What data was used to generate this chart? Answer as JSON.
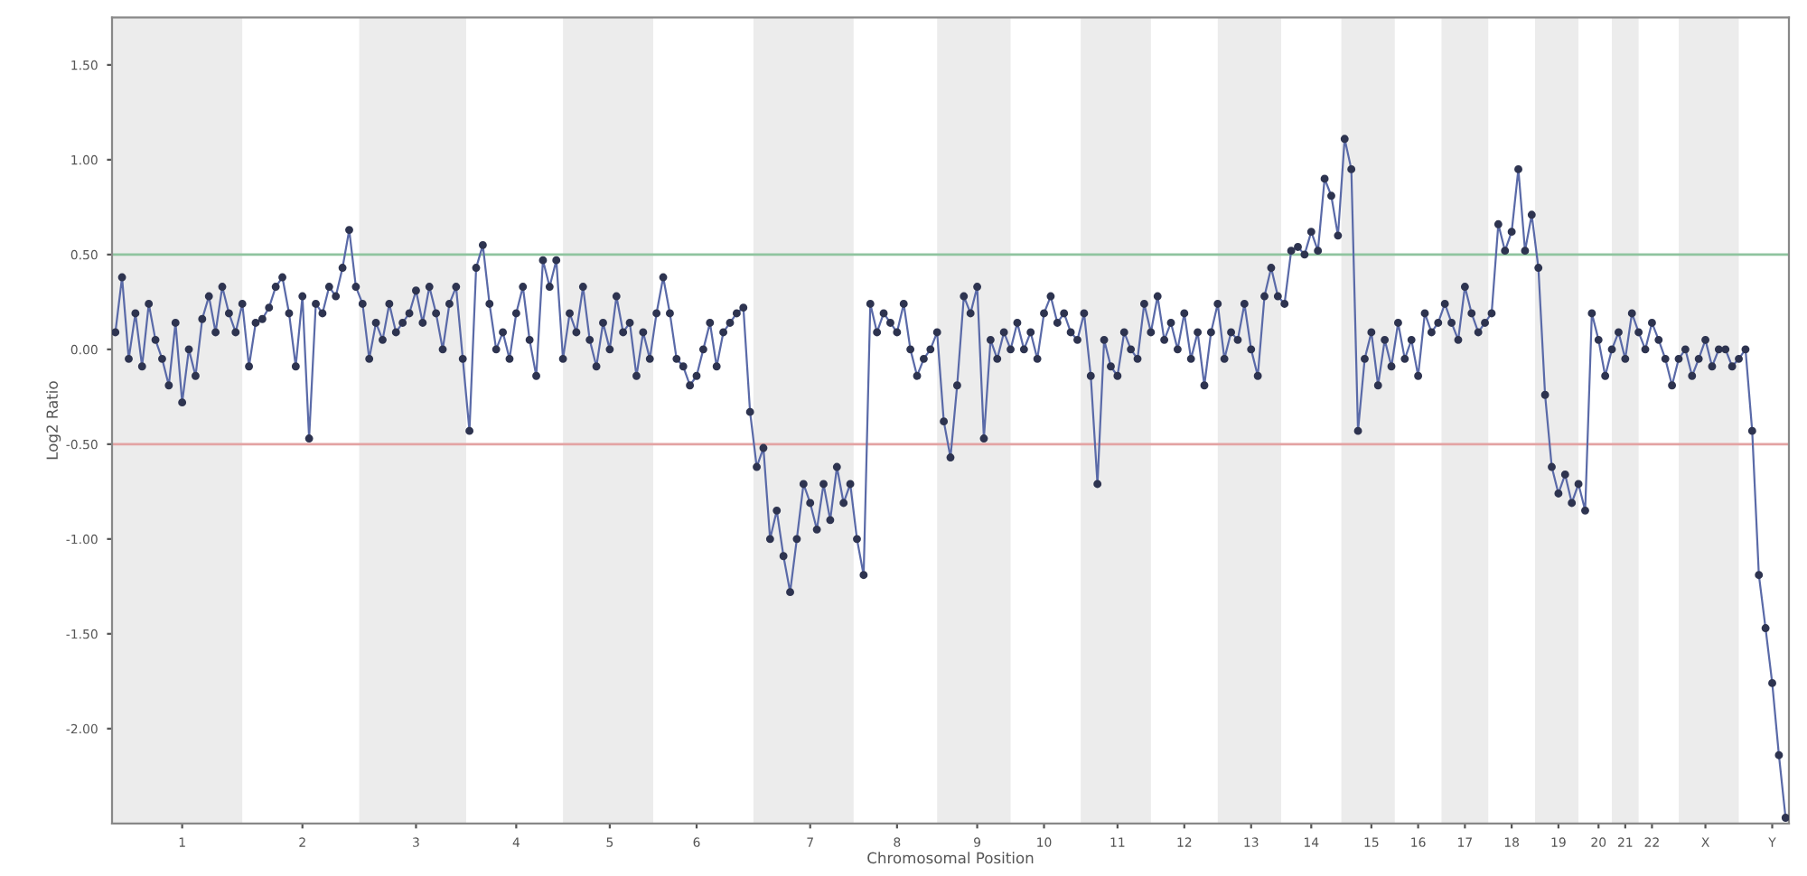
{
  "chart_data": {
    "type": "line",
    "xlabel": "Chromosomal Position",
    "ylabel": "Log2 Ratio",
    "ylim": [
      -2.5,
      1.75
    ],
    "categories": [
      null,
      null,
      null,
      null,
      null,
      null,
      null,
      null,
      null,
      null,
      "1",
      null,
      null,
      null,
      null,
      null,
      null,
      null,
      null,
      null,
      null,
      null,
      null,
      null,
      null,
      null,
      null,
      null,
      "2",
      null,
      null,
      null,
      null,
      null,
      null,
      null,
      null,
      null,
      null,
      null,
      null,
      null,
      null,
      null,
      null,
      "3",
      null,
      null,
      null,
      null,
      null,
      null,
      null,
      null,
      null,
      null,
      null,
      null,
      null,
      null,
      "4",
      null,
      null,
      null,
      null,
      null,
      null,
      null,
      null,
      null,
      null,
      null,
      null,
      null,
      "5",
      null,
      null,
      null,
      null,
      null,
      null,
      null,
      null,
      null,
      null,
      null,
      null,
      "6",
      null,
      null,
      null,
      null,
      null,
      null,
      null,
      null,
      null,
      null,
      null,
      null,
      null,
      null,
      null,
      null,
      "7",
      null,
      null,
      null,
      null,
      null,
      null,
      null,
      null,
      null,
      null,
      null,
      null,
      "8",
      null,
      null,
      null,
      null,
      null,
      null,
      null,
      null,
      null,
      null,
      null,
      "9",
      null,
      null,
      null,
      null,
      null,
      null,
      null,
      null,
      null,
      "10",
      null,
      null,
      null,
      null,
      null,
      null,
      null,
      null,
      null,
      null,
      "11",
      null,
      null,
      null,
      null,
      null,
      null,
      null,
      null,
      null,
      "12",
      null,
      null,
      null,
      null,
      null,
      null,
      null,
      null,
      null,
      "13",
      null,
      null,
      null,
      null,
      null,
      null,
      null,
      null,
      "14",
      null,
      null,
      null,
      null,
      null,
      null,
      null,
      null,
      "15",
      null,
      null,
      null,
      null,
      null,
      null,
      "16",
      null,
      null,
      null,
      null,
      null,
      null,
      "17",
      null,
      null,
      null,
      null,
      null,
      null,
      "18",
      null,
      null,
      null,
      null,
      null,
      null,
      "19",
      null,
      null,
      null,
      null,
      null,
      "20",
      null,
      null,
      null,
      "21",
      null,
      null,
      null,
      "22",
      null,
      null,
      null,
      null,
      null,
      null,
      null,
      "X",
      null,
      null,
      null,
      null,
      null,
      null,
      null,
      null,
      null,
      "Y",
      null,
      null
    ],
    "yticks": [
      {
        "value": 1.5,
        "label": "1.50"
      },
      {
        "value": 1,
        "label": "1.00"
      },
      {
        "value": 0.5,
        "label": "0.50"
      },
      {
        "value": 0,
        "label": "0.00"
      },
      {
        "value": -0.5,
        "label": "-0.50"
      },
      {
        "value": -1,
        "label": "-1.00"
      },
      {
        "value": -1.5,
        "label": "-1.50"
      },
      {
        "value": -2,
        "label": "-2.00"
      }
    ],
    "grid": false,
    "marker": "circle",
    "line_style": "solid",
    "ref_lines": [
      {
        "axis": "y",
        "value": 0.5,
        "color": "#8fc49f"
      },
      {
        "axis": "y",
        "value": -0.5,
        "color": "#e3a3a3"
      }
    ],
    "series": [
      {
        "color": "#5a6aa8",
        "values": [
          0.09,
          0.38,
          -0.05,
          0.19,
          -0.09,
          0.24,
          0.05,
          -0.05,
          -0.19,
          0.14,
          -0.28,
          0,
          -0.14,
          0.16,
          0.28,
          0.09,
          0.33,
          0.19,
          0.09,
          0.24,
          -0.09,
          0.14,
          0.16,
          0.22,
          0.33,
          0.38,
          0.19,
          -0.09,
          0.28,
          -0.47,
          0.24,
          0.19,
          0.33,
          0.28,
          0.43,
          0.63,
          0.33,
          0.24,
          -0.05,
          0.14,
          0.05,
          0.24,
          0.09,
          0.14,
          0.19,
          0.31,
          0.14,
          0.33,
          0.19,
          0,
          0.24,
          0.33,
          -0.05,
          -0.43,
          0.43,
          0.55,
          0.24,
          0,
          0.09,
          -0.05,
          0.19,
          0.33,
          0.05,
          -0.14,
          0.47,
          0.33,
          0.47,
          -0.05,
          0.19,
          0.09,
          0.33,
          0.05,
          -0.09,
          0.14,
          0,
          0.28,
          0.09,
          0.14,
          -0.14,
          0.09,
          -0.05,
          0.19,
          0.38,
          0.19,
          -0.05,
          -0.09,
          -0.19,
          -0.14,
          0,
          0.14,
          -0.09,
          0.09,
          0.14,
          0.19,
          0.22,
          -0.33,
          -0.62,
          -0.52,
          -1.0,
          -0.85,
          -1.09,
          -1.28,
          -1.0,
          -0.71,
          -0.81,
          -0.95,
          -0.71,
          -0.9,
          -0.62,
          -0.81,
          -0.71,
          -1.0,
          -1.19,
          0.24,
          0.09,
          0.19,
          0.14,
          0.09,
          0.24,
          0,
          -0.14,
          -0.05,
          0,
          0.09,
          -0.38,
          -0.57,
          -0.19,
          0.28,
          0.19,
          0.33,
          -0.47,
          0.05,
          -0.05,
          0.09,
          0,
          0.14,
          0,
          0.09,
          -0.05,
          0.19,
          0.28,
          0.14,
          0.19,
          0.09,
          0.05,
          0.19,
          -0.14,
          -0.71,
          0.05,
          -0.09,
          -0.14,
          0.09,
          0,
          -0.05,
          0.24,
          0.09,
          0.28,
          0.05,
          0.14,
          0,
          0.19,
          -0.05,
          0.09,
          -0.19,
          0.09,
          0.24,
          -0.05,
          0.09,
          0.05,
          0.24,
          0,
          -0.14,
          0.28,
          0.43,
          0.28,
          0.24,
          0.52,
          0.54,
          0.5,
          0.62,
          0.52,
          0.9,
          0.81,
          0.6,
          1.11,
          0.95,
          -0.43,
          -0.05,
          0.09,
          -0.19,
          0.05,
          -0.09,
          0.14,
          -0.05,
          0.05,
          -0.14,
          0.19,
          0.09,
          0.14,
          0.24,
          0.14,
          0.05,
          0.33,
          0.19,
          0.09,
          0.14,
          0.19,
          0.66,
          0.52,
          0.62,
          0.95,
          0.52,
          0.71,
          0.43,
          -0.24,
          -0.62,
          -0.76,
          -0.66,
          -0.81,
          -0.71,
          -0.85,
          0.19,
          0.05,
          -0.14,
          0,
          0.09,
          -0.05,
          0.19,
          0.09,
          0,
          0.14,
          0.05,
          -0.05,
          -0.19,
          -0.05,
          0,
          -0.14,
          -0.05,
          0.05,
          -0.09,
          0,
          0,
          -0.09,
          -0.05,
          0,
          -0.43,
          -1.19,
          -1.47,
          -1.76,
          -2.14,
          -2.47
        ]
      }
    ]
  }
}
